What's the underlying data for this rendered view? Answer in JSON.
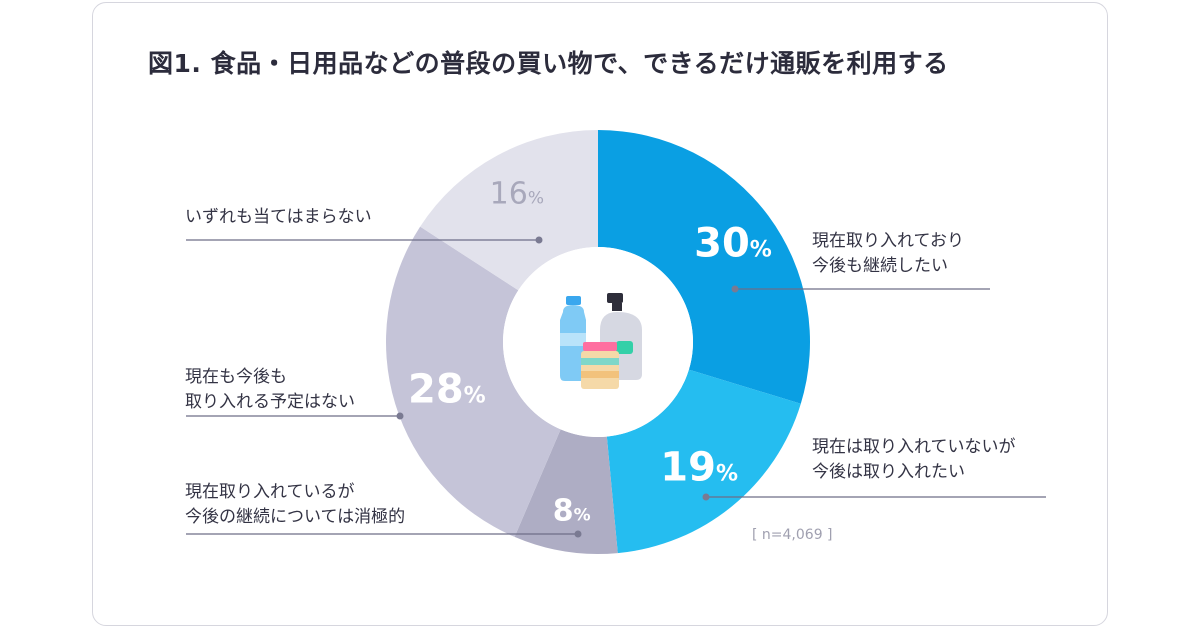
{
  "title": "図1. 食品・日用品などの普段の買い物で、できるだけ通販を利用する",
  "sample_note": "[ n=4,069 ]",
  "chart_data": {
    "type": "pie",
    "title": "図1. 食品・日用品などの普段の買い物で、できるだけ通販を利用する",
    "unit": "%",
    "slices": [
      {
        "label": "現在取り入れており 今後も継続したい",
        "label_lines": [
          "現在取り入れており",
          "今後も継続したい"
        ],
        "value": 30,
        "color": "#0a9fe3"
      },
      {
        "label": "現在は取り入れていないが 今後は取り入れたい",
        "label_lines": [
          "現在は取り入れていないが",
          "今後は取り入れたい"
        ],
        "value": 19,
        "color": "#25bdf0"
      },
      {
        "label": "現在取り入れているが 今後の継続については消極的",
        "label_lines": [
          "現在取り入れているが",
          "今後の継続については消極的"
        ],
        "value": 8,
        "color": "#aeadc4"
      },
      {
        "label": "現在も今後も 取り入れる予定はない",
        "label_lines": [
          "現在も今後も",
          "取り入れる予定はない"
        ],
        "value": 28,
        "color": "#c5c4d8"
      },
      {
        "label": "いずれも当てはまらない",
        "label_lines": [
          "いずれも当てはまらない"
        ],
        "value": 16,
        "color": "#e2e2ec"
      }
    ],
    "center_icon": "bottles-icon"
  }
}
